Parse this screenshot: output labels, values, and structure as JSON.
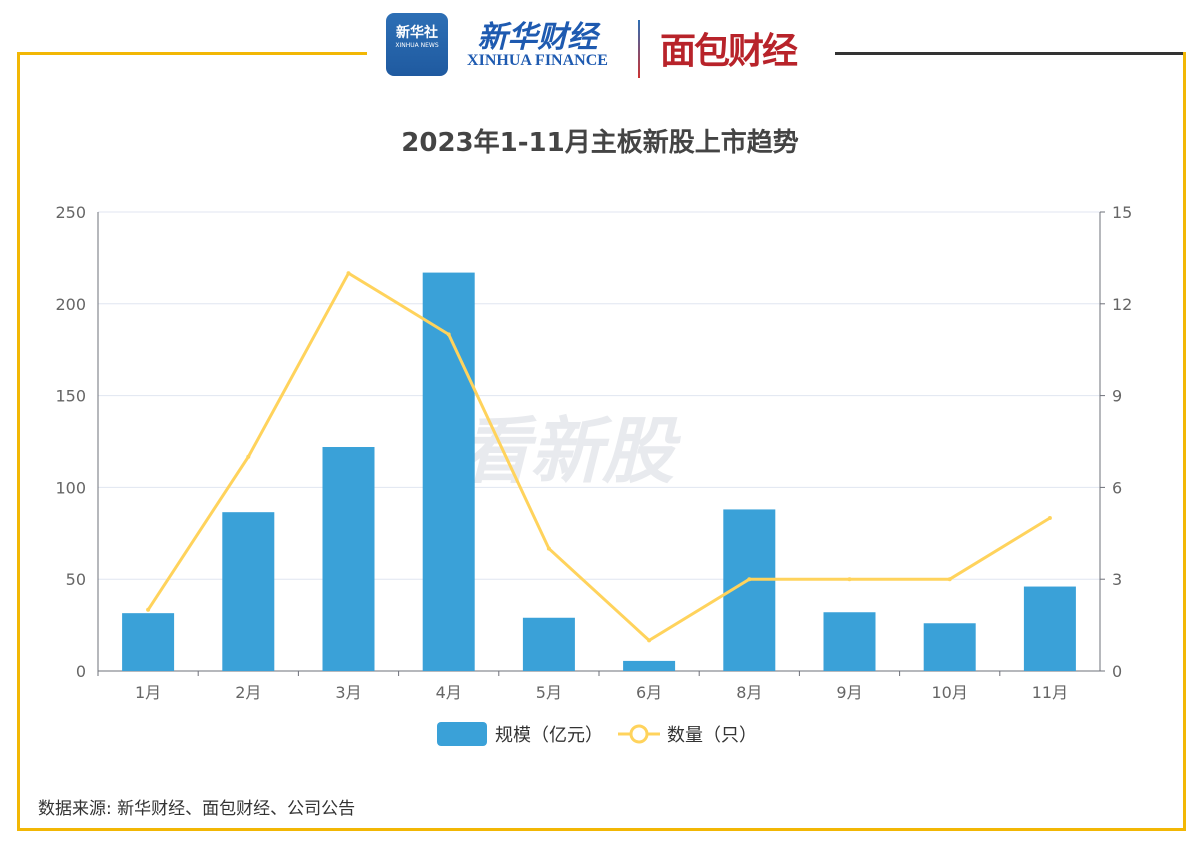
{
  "header": {
    "logo_xinhua": "新华社",
    "logo_xinhua_en": "XINHUA NEWS",
    "logo_finance_cn": "新华财经",
    "logo_finance_en": "XINHUA FINANCE",
    "logo_mianbao": "面包财经"
  },
  "watermark": "看新股",
  "source": "数据来源: 新华财经、面包财经、公司公告",
  "colors": {
    "bar": "#3aa1d8",
    "line": "#ffd35c",
    "frame": "#f2b705"
  },
  "chart_data": {
    "type": "bar",
    "title": "2023年1-11月主板新股上市趋势",
    "categories": [
      "1月",
      "2月",
      "3月",
      "4月",
      "5月",
      "6月",
      "8月",
      "9月",
      "10月",
      "11月"
    ],
    "series": [
      {
        "name": "规模（亿元）",
        "type": "bar",
        "axis": "left",
        "values": [
          31.5,
          86.5,
          122,
          217,
          29,
          5.5,
          88,
          32,
          26,
          46
        ]
      },
      {
        "name": "数量（只）",
        "type": "line",
        "axis": "right",
        "values": [
          2,
          7,
          13,
          11,
          4,
          1,
          3,
          3,
          3,
          5
        ]
      }
    ],
    "ylim_left": [
      0,
      250
    ],
    "yticks_left": [
      "0",
      "50",
      "100",
      "150",
      "200",
      "250"
    ],
    "ylim_right": [
      0,
      15
    ],
    "yticks_right": [
      "0",
      "3",
      "6",
      "9",
      "12",
      "15"
    ],
    "grid": true,
    "legend": "bottom"
  }
}
